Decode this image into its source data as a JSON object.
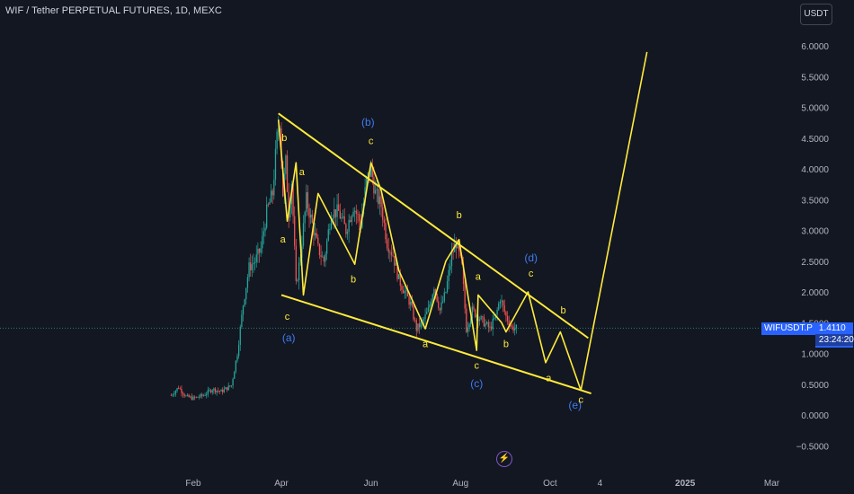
{
  "header": {
    "title": "WIF / Tether PERPETUAL FUTURES, 1D, MEXC"
  },
  "currency_button": {
    "label": "USDT"
  },
  "price_badge": {
    "symbol": "WIFUSDT.P",
    "price": "1.4110",
    "countdown": "23:24:20"
  },
  "event_icon": {
    "glyph": "⚡"
  },
  "colors": {
    "background": "#131722",
    "up": "#26a69a",
    "down": "#ef5350",
    "drawing": "#ffeb3b",
    "wave_label": "#ffeb3b",
    "degree_label": "#3f7cf0",
    "axis_text": "#b2b5be",
    "price_line": "#26a69a"
  },
  "chart_data": {
    "type": "candlestick",
    "y_axis": {
      "ticks": [
        "6.0000",
        "5.5000",
        "5.0000",
        "4.5000",
        "4.0000",
        "3.5000",
        "3.0000",
        "2.5000",
        "2.0000",
        "1.5000",
        "1.0000",
        "0.5000",
        "0.0000",
        "−0.5000"
      ],
      "range": [
        -0.55,
        6.45
      ]
    },
    "x_axis": {
      "ticks": [
        "Feb",
        "Apr",
        "Jun",
        "Aug",
        "Oct",
        "4",
        "2025",
        "Mar"
      ]
    },
    "last_price": 1.411,
    "price_path": [
      [
        "2024-01-17",
        0.32
      ],
      [
        "2024-01-22",
        0.45
      ],
      [
        "2024-01-27",
        0.3
      ],
      [
        "2024-02-01",
        0.27
      ],
      [
        "2024-02-08",
        0.32
      ],
      [
        "2024-02-14",
        0.42
      ],
      [
        "2024-02-20",
        0.38
      ],
      [
        "2024-02-27",
        0.48
      ],
      [
        "2024-03-02",
        1.0
      ],
      [
        "2024-03-06",
        1.8
      ],
      [
        "2024-03-10",
        2.4
      ],
      [
        "2024-03-14",
        2.5
      ],
      [
        "2024-03-18",
        2.7
      ],
      [
        "2024-03-22",
        3.3
      ],
      [
        "2024-03-26",
        3.6
      ],
      [
        "2024-03-29",
        4.5
      ],
      [
        "2024-03-31",
        4.8
      ],
      [
        "2024-04-02",
        3.6
      ],
      [
        "2024-04-04",
        4.1
      ],
      [
        "2024-04-06",
        3.3
      ],
      [
        "2024-04-08",
        3.8
      ],
      [
        "2024-04-11",
        2.1
      ],
      [
        "2024-04-14",
        2.6
      ],
      [
        "2024-04-18",
        3.5
      ],
      [
        "2024-04-22",
        3.1
      ],
      [
        "2024-04-26",
        2.7
      ],
      [
        "2024-04-30",
        2.5
      ],
      [
        "2024-05-05",
        3.3
      ],
      [
        "2024-05-10",
        3.3
      ],
      [
        "2024-05-15",
        3.0
      ],
      [
        "2024-05-20",
        3.4
      ],
      [
        "2024-05-25",
        3.1
      ],
      [
        "2024-05-29",
        3.8
      ],
      [
        "2024-06-01",
        4.0
      ],
      [
        "2024-06-04",
        3.6
      ],
      [
        "2024-06-08",
        3.4
      ],
      [
        "2024-06-12",
        2.8
      ],
      [
        "2024-06-16",
        2.6
      ],
      [
        "2024-06-20",
        2.2
      ],
      [
        "2024-06-24",
        2.0
      ],
      [
        "2024-06-28",
        1.8
      ],
      [
        "2024-07-02",
        1.4
      ],
      [
        "2024-07-06",
        1.5
      ],
      [
        "2024-07-10",
        1.7
      ],
      [
        "2024-07-14",
        2.1
      ],
      [
        "2024-07-18",
        1.7
      ],
      [
        "2024-07-22",
        2.0
      ],
      [
        "2024-07-26",
        2.6
      ],
      [
        "2024-07-29",
        2.8
      ],
      [
        "2024-08-02",
        2.4
      ],
      [
        "2024-08-05",
        1.4
      ],
      [
        "2024-08-09",
        1.7
      ],
      [
        "2024-08-13",
        1.6
      ],
      [
        "2024-08-17",
        1.5
      ],
      [
        "2024-08-21",
        1.4
      ],
      [
        "2024-08-25",
        1.6
      ],
      [
        "2024-08-28",
        1.9
      ],
      [
        "2024-09-01",
        1.6
      ],
      [
        "2024-09-05",
        1.42
      ],
      [
        "2024-09-08",
        1.41
      ]
    ],
    "wave_path": [
      [
        "2024-03-30",
        4.8
      ],
      [
        "2024-04-05",
        3.15
      ],
      [
        "2024-04-11",
        4.1
      ],
      [
        "2024-04-16",
        1.95
      ],
      [
        "2024-04-26",
        3.6
      ],
      [
        "2024-05-21",
        2.45
      ],
      [
        "2024-06-01",
        4.1
      ],
      [
        "2024-06-08",
        3.65
      ],
      [
        "2024-06-20",
        2.35
      ],
      [
        "2024-07-08",
        1.4
      ],
      [
        "2024-07-22",
        2.5
      ],
      [
        "2024-07-31",
        2.85
      ],
      [
        "2024-08-12",
        1.05
      ],
      [
        "2024-08-13",
        1.95
      ],
      [
        "2024-08-29",
        1.5
      ],
      [
        "2024-09-01",
        1.35
      ],
      [
        "2024-09-16",
        2.0
      ],
      [
        "2024-09-28",
        0.85
      ],
      [
        "2024-10-08",
        1.35
      ],
      [
        "2024-10-22",
        0.4
      ],
      [
        "2024-12-06",
        5.9
      ]
    ],
    "upper_trendline": [
      [
        "2024-03-30",
        4.9
      ],
      [
        "2024-10-27",
        1.25
      ]
    ],
    "lower_trendline": [
      [
        "2024-04-01",
        1.95
      ],
      [
        "2024-10-29",
        0.35
      ]
    ],
    "wave_labels": [
      {
        "text": "b",
        "x": "2024-04-03",
        "y": 4.45,
        "kind": "wave"
      },
      {
        "text": "a",
        "x": "2024-04-02",
        "y": 2.8,
        "kind": "wave"
      },
      {
        "text": "c",
        "x": "2024-04-05",
        "y": 1.55,
        "kind": "wave"
      },
      {
        "text": "(a)",
        "x": "2024-04-06",
        "y": 1.2,
        "kind": "degree"
      },
      {
        "text": "a",
        "x": "2024-04-15",
        "y": 3.9,
        "kind": "wave"
      },
      {
        "text": "b",
        "x": "2024-05-20",
        "y": 2.15,
        "kind": "wave"
      },
      {
        "text": "(b)",
        "x": "2024-05-30",
        "y": 4.7,
        "kind": "degree"
      },
      {
        "text": "c",
        "x": "2024-06-01",
        "y": 4.4,
        "kind": "wave"
      },
      {
        "text": "a",
        "x": "2024-07-08",
        "y": 1.1,
        "kind": "wave"
      },
      {
        "text": "b",
        "x": "2024-07-31",
        "y": 3.2,
        "kind": "wave"
      },
      {
        "text": "a",
        "x": "2024-08-13",
        "y": 2.2,
        "kind": "wave"
      },
      {
        "text": "c",
        "x": "2024-08-12",
        "y": 0.75,
        "kind": "wave"
      },
      {
        "text": "(c)",
        "x": "2024-08-12",
        "y": 0.45,
        "kind": "degree"
      },
      {
        "text": "b",
        "x": "2024-09-01",
        "y": 1.1,
        "kind": "wave"
      },
      {
        "text": "(d)",
        "x": "2024-09-18",
        "y": 2.5,
        "kind": "degree"
      },
      {
        "text": "c",
        "x": "2024-09-18",
        "y": 2.25,
        "kind": "wave"
      },
      {
        "text": "a",
        "x": "2024-09-30",
        "y": 0.55,
        "kind": "wave"
      },
      {
        "text": "b",
        "x": "2024-10-10",
        "y": 1.65,
        "kind": "wave"
      },
      {
        "text": "(e)",
        "x": "2024-10-18",
        "y": 0.1,
        "kind": "degree"
      },
      {
        "text": "c",
        "x": "2024-10-22",
        "y": 0.2,
        "kind": "wave"
      }
    ]
  }
}
